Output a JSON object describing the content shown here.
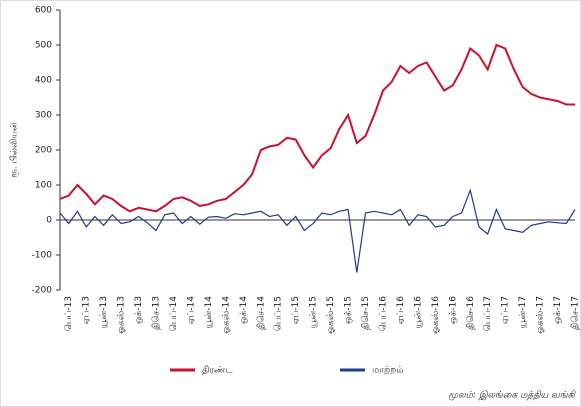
{
  "chart_data": {
    "type": "line",
    "y_label": "ரூ. பில்லியன்",
    "categories": [
      null,
      "பெப்-13",
      null,
      "ஏப்-13",
      null,
      "யூன்-13",
      null,
      "ஓகஸ்-13",
      null,
      "ஒக்-13",
      null,
      "திசெ-13",
      null,
      "பெப்-14",
      null,
      "ஏப்-14",
      null,
      "யூன்-14",
      null,
      "ஓகஸ்-14",
      null,
      "ஒக்-14",
      null,
      "திசெ-14",
      null,
      "பெப்-15",
      null,
      "ஏப்-15",
      null,
      "யூன்-15",
      null,
      "ஓகஸ்-15",
      null,
      "ஒக்-15",
      null,
      "திசெ-15",
      null,
      "பெப்-16",
      null,
      "ஏப்-16",
      null,
      "யூன்-16",
      null,
      "ஓகஸ்-16",
      null,
      "ஒக்-16",
      null,
      "திசெ-16",
      null,
      "பெப்-17",
      null,
      "ஏப்-17",
      null,
      "யூன்-17",
      null,
      "ஓகஸ்-17",
      null,
      "ஒக்-17",
      null,
      "திசெ-17"
    ],
    "series": [
      {
        "name": "திரண்ட",
        "color": "#c8102e",
        "values": [
          60,
          70,
          100,
          75,
          45,
          70,
          60,
          40,
          25,
          35,
          30,
          25,
          40,
          60,
          65,
          55,
          40,
          45,
          55,
          60,
          80,
          100,
          130,
          200,
          210,
          215,
          235,
          230,
          185,
          150,
          185,
          205,
          260,
          300,
          220,
          240,
          300,
          370,
          395,
          440,
          420,
          440,
          450,
          410,
          370,
          385,
          430,
          490,
          470,
          430,
          500,
          490,
          430,
          380,
          360,
          350,
          345,
          340,
          330,
          330
        ]
      },
      {
        "name": "மாற்றம்",
        "color": "#1f3c88",
        "values": [
          20,
          -10,
          25,
          -20,
          10,
          -15,
          15,
          -10,
          -5,
          10,
          -8,
          -30,
          15,
          20,
          -10,
          10,
          -12,
          8,
          10,
          5,
          18,
          15,
          20,
          25,
          10,
          15,
          -15,
          10,
          -30,
          -10,
          20,
          15,
          25,
          30,
          -150,
          20,
          25,
          20,
          15,
          30,
          -15,
          15,
          10,
          -20,
          -15,
          10,
          20,
          85,
          -20,
          -40,
          30,
          -25,
          -30,
          -35,
          -15,
          -10,
          -5,
          -8,
          -10,
          30
        ]
      }
    ],
    "ylim": [
      -200,
      600
    ],
    "yticks": [
      -200,
      -100,
      0,
      100,
      200,
      300,
      400,
      500,
      600
    ],
    "source": "மூலம்: இலங்கை மத்திய வங்கி"
  }
}
